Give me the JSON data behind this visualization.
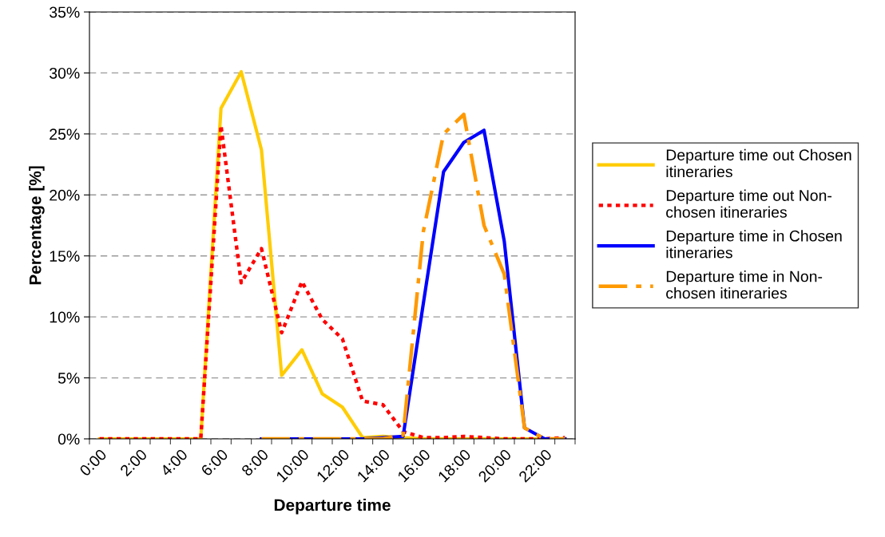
{
  "chart_data": {
    "type": "line",
    "xlabel": "Departure time",
    "ylabel": "Percentage [%]",
    "categories": [
      "0:00",
      null,
      "2:00",
      null,
      "4:00",
      null,
      "6:00",
      null,
      "8:00",
      null,
      "10:00",
      null,
      "12:00",
      null,
      "14:00",
      null,
      "16:00",
      null,
      "18:00",
      null,
      "20:00",
      null,
      "22:00",
      null
    ],
    "series": [
      {
        "name": "Departure time out Chosen\nitineraries",
        "color": "#ffcc00",
        "line_style": "solid",
        "values": [
          0,
          0,
          0,
          0,
          0,
          0,
          27.1,
          30.1,
          23.7,
          5.2,
          7.3,
          3.7,
          2.6,
          0.1,
          0.2,
          0.1,
          0,
          0,
          0,
          0,
          0,
          0,
          0,
          0
        ]
      },
      {
        "name": "Departure time out Non-\nchosen itineraries",
        "color": "#ff0000",
        "line_style": "dotted",
        "values": [
          0,
          0,
          0,
          0,
          0,
          0,
          25.7,
          12.8,
          15.6,
          8.7,
          12.9,
          9.8,
          8.2,
          3.1,
          2.8,
          0.6,
          0.1,
          0.1,
          0.2,
          0.1,
          0,
          0,
          0,
          0.1
        ]
      },
      {
        "name": "Departure time in Chosen\nitineraries",
        "color": "#0000ff",
        "line_style": "solid",
        "values": [
          null,
          null,
          null,
          null,
          null,
          null,
          null,
          null,
          0,
          0,
          0,
          0,
          0,
          0,
          0.1,
          0.2,
          11.1,
          21.9,
          24.3,
          25.3,
          16.2,
          0.9,
          0,
          0
        ]
      },
      {
        "name": "Departure time in Non-\nchosen itineraries",
        "color": "#ff9900",
        "line_style": "dashed",
        "values": [
          null,
          null,
          null,
          null,
          null,
          null,
          null,
          null,
          0,
          0,
          0,
          0,
          0,
          0,
          0,
          0.3,
          17.0,
          25.0,
          26.6,
          17.5,
          13.5,
          0.9,
          0,
          0
        ]
      }
    ],
    "ylim": [
      0,
      35
    ],
    "yticks": [
      {
        "value": 0,
        "label": "0%"
      },
      {
        "value": 5,
        "label": "5%"
      },
      {
        "value": 10,
        "label": "10%"
      },
      {
        "value": 15,
        "label": "15%"
      },
      {
        "value": 20,
        "label": "20%"
      },
      {
        "value": 25,
        "label": "25%"
      },
      {
        "value": 30,
        "label": "30%"
      },
      {
        "value": 35,
        "label": "35%"
      }
    ],
    "grid": "y",
    "legend": "right",
    "marker": "none"
  }
}
